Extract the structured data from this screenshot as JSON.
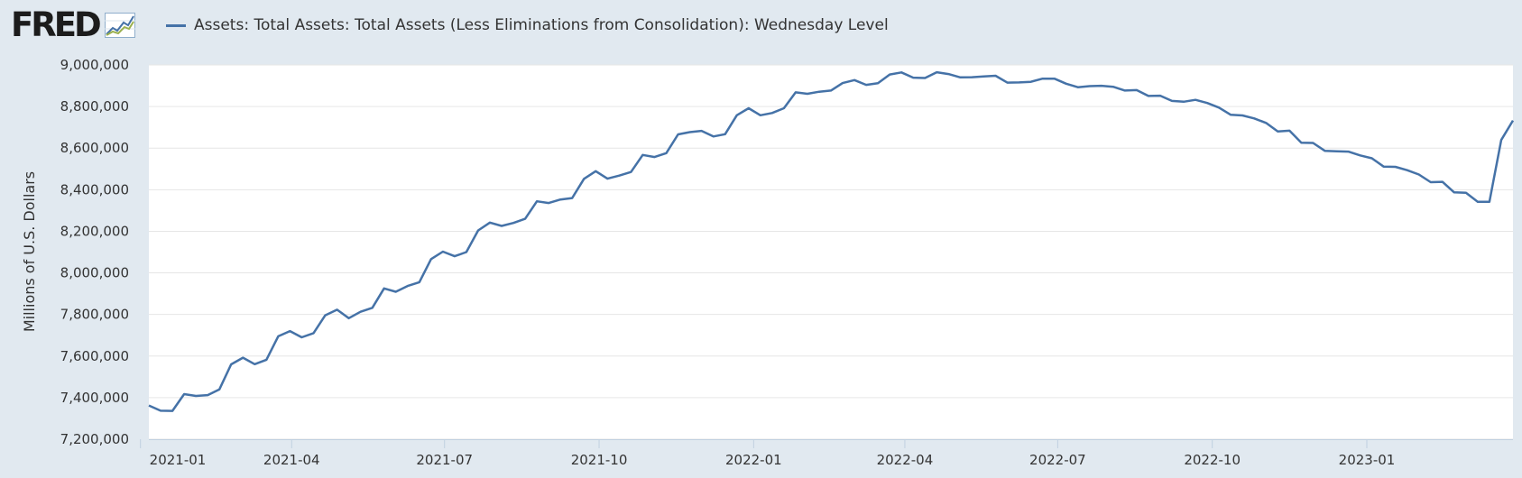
{
  "brand": {
    "name": "FRED"
  },
  "legend": {
    "series_label": "Assets: Total Assets: Total Assets (Less Eliminations from Consolidation): Wednesday Level"
  },
  "colors": {
    "series": "#4572a7",
    "background": "#e1e9f0",
    "plot": "#ffffff",
    "grid": "#e6e6e6"
  },
  "chart_data": {
    "type": "line",
    "title": "",
    "xlabel": "",
    "ylabel": "Millions of U.S. Dollars",
    "ylim": [
      7200000,
      9000000
    ],
    "xlim": [
      "2021-01-06",
      "2023-03-29"
    ],
    "grid": true,
    "legend_position": "top-left",
    "y_ticks": [
      {
        "value": 7200000,
        "label": "7,200,000"
      },
      {
        "value": 7400000,
        "label": "7,400,000"
      },
      {
        "value": 7600000,
        "label": "7,600,000"
      },
      {
        "value": 7800000,
        "label": "7,800,000"
      },
      {
        "value": 8000000,
        "label": "8,000,000"
      },
      {
        "value": 8200000,
        "label": "8,200,000"
      },
      {
        "value": 8400000,
        "label": "8,400,000"
      },
      {
        "value": 8600000,
        "label": "8,600,000"
      },
      {
        "value": 8800000,
        "label": "8,800,000"
      },
      {
        "value": 9000000,
        "label": "9,000,000"
      }
    ],
    "x_ticks": [
      {
        "date": "2021-01-01",
        "label": "2021-01"
      },
      {
        "date": "2021-04-01",
        "label": "2021-04"
      },
      {
        "date": "2021-07-01",
        "label": "2021-07"
      },
      {
        "date": "2021-10-01",
        "label": "2021-10"
      },
      {
        "date": "2022-01-01",
        "label": "2022-01"
      },
      {
        "date": "2022-04-01",
        "label": "2022-04"
      },
      {
        "date": "2022-07-01",
        "label": "2022-07"
      },
      {
        "date": "2022-10-01",
        "label": "2022-10"
      },
      {
        "date": "2023-01-01",
        "label": "2023-01"
      }
    ],
    "series": [
      {
        "name": "Assets: Total Assets: Total Assets (Less Eliminations from Consolidation): Wednesday Level",
        "x": [
          "2021-01-06",
          "2021-01-13",
          "2021-01-20",
          "2021-01-27",
          "2021-02-03",
          "2021-02-10",
          "2021-02-17",
          "2021-02-24",
          "2021-03-03",
          "2021-03-10",
          "2021-03-17",
          "2021-03-24",
          "2021-03-31",
          "2021-04-07",
          "2021-04-14",
          "2021-04-21",
          "2021-04-28",
          "2021-05-05",
          "2021-05-12",
          "2021-05-19",
          "2021-05-26",
          "2021-06-02",
          "2021-06-09",
          "2021-06-16",
          "2021-06-23",
          "2021-06-30",
          "2021-07-07",
          "2021-07-14",
          "2021-07-21",
          "2021-07-28",
          "2021-08-04",
          "2021-08-11",
          "2021-08-18",
          "2021-08-25",
          "2021-09-01",
          "2021-09-08",
          "2021-09-15",
          "2021-09-22",
          "2021-09-29",
          "2021-10-06",
          "2021-10-13",
          "2021-10-20",
          "2021-10-27",
          "2021-11-03",
          "2021-11-10",
          "2021-11-17",
          "2021-11-24",
          "2021-12-01",
          "2021-12-08",
          "2021-12-15",
          "2021-12-22",
          "2021-12-29",
          "2022-01-05",
          "2022-01-12",
          "2022-01-19",
          "2022-01-26",
          "2022-02-02",
          "2022-02-09",
          "2022-02-16",
          "2022-02-23",
          "2022-03-02",
          "2022-03-09",
          "2022-03-16",
          "2022-03-23",
          "2022-03-30",
          "2022-04-06",
          "2022-04-13",
          "2022-04-20",
          "2022-04-27",
          "2022-05-04",
          "2022-05-11",
          "2022-05-18",
          "2022-05-25",
          "2022-06-01",
          "2022-06-08",
          "2022-06-15",
          "2022-06-22",
          "2022-06-29",
          "2022-07-06",
          "2022-07-13",
          "2022-07-20",
          "2022-07-27",
          "2022-08-03",
          "2022-08-10",
          "2022-08-17",
          "2022-08-24",
          "2022-08-31",
          "2022-09-07",
          "2022-09-14",
          "2022-09-21",
          "2022-09-28",
          "2022-10-05",
          "2022-10-12",
          "2022-10-19",
          "2022-10-26",
          "2022-11-02",
          "2022-11-09",
          "2022-11-16",
          "2022-11-23",
          "2022-11-30",
          "2022-12-07",
          "2022-12-14",
          "2022-12-21",
          "2022-12-28",
          "2023-01-04",
          "2023-01-11",
          "2023-01-18",
          "2023-01-25",
          "2023-02-01",
          "2023-02-08",
          "2023-02-15",
          "2023-02-22",
          "2023-03-01",
          "2023-03-08",
          "2023-03-15",
          "2023-03-22",
          "2023-03-29"
        ],
        "values": [
          7362000,
          7337000,
          7336000,
          7417000,
          7408000,
          7412000,
          7440000,
          7560000,
          7592000,
          7561000,
          7582000,
          7695000,
          7720000,
          7690000,
          7710000,
          7796000,
          7823000,
          7782000,
          7813000,
          7832000,
          7925000,
          7909000,
          7937000,
          7955000,
          8066000,
          8102000,
          8080000,
          8100000,
          8204000,
          8242000,
          8226000,
          8240000,
          8260000,
          8344000,
          8336000,
          8353000,
          8360000,
          8452000,
          8489000,
          8453000,
          8468000,
          8485000,
          8567000,
          8557000,
          8576000,
          8666000,
          8677000,
          8683000,
          8656000,
          8667000,
          8758000,
          8792000,
          8758000,
          8769000,
          8792000,
          8868000,
          8861000,
          8871000,
          8877000,
          8913000,
          8927000,
          8904000,
          8912000,
          8954000,
          8964000,
          8939000,
          8937000,
          8965000,
          8956000,
          8940000,
          8941000,
          8945000,
          8948000,
          8915000,
          8916000,
          8919000,
          8934000,
          8934000,
          8910000,
          8893000,
          8898000,
          8900000,
          8895000,
          8877000,
          8879000,
          8851000,
          8852000,
          8827000,
          8823000,
          8832000,
          8817000,
          8795000,
          8760000,
          8757000,
          8743000,
          8721000,
          8680000,
          8684000,
          8626000,
          8625000,
          8587000,
          8585000,
          8583000,
          8565000,
          8551000,
          8511000,
          8510000,
          8494000,
          8473000,
          8436000,
          8438000,
          8387000,
          8385000,
          8342000,
          8342000,
          8639000,
          8733000
        ]
      }
    ]
  }
}
